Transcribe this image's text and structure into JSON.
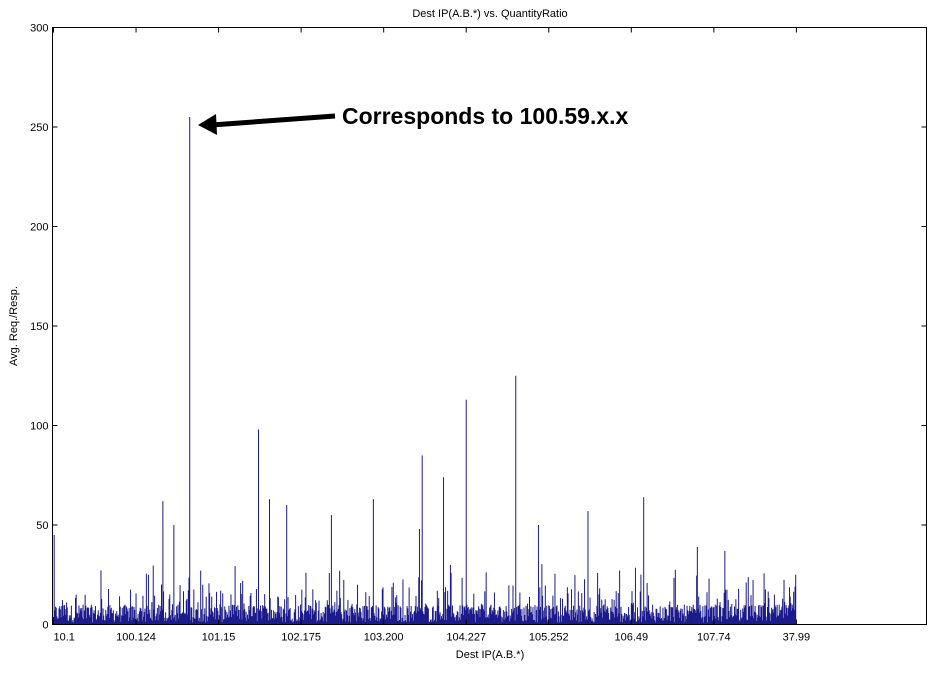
{
  "chart_data": {
    "type": "bar",
    "title": "Dest IP(A.B.*) vs. QuantityRatio",
    "xlabel": "Dest IP(A.B.*)",
    "ylabel": "Avg. Req./Resp.",
    "ylim": [
      0,
      300
    ],
    "yticks": [
      0,
      50,
      100,
      150,
      200,
      250,
      300
    ],
    "xtick_labels": [
      "10.1",
      "100.124",
      "101.15",
      "102.175",
      "103.200",
      "104.227",
      "105.252",
      "106.49",
      "107.74",
      "37.99"
    ],
    "bar_color": "#1a1a8c",
    "grid": false,
    "n_categories": 1080,
    "data_extent": 0.85,
    "highlight_values": [
      {
        "position": 0.001,
        "value": 45
      },
      {
        "position": 0.125,
        "value": 62
      },
      {
        "position": 0.138,
        "value": 50
      },
      {
        "position": 0.156,
        "value": 255
      },
      {
        "position": 0.235,
        "value": 98
      },
      {
        "position": 0.247,
        "value": 63
      },
      {
        "position": 0.267,
        "value": 60
      },
      {
        "position": 0.318,
        "value": 55
      },
      {
        "position": 0.366,
        "value": 63
      },
      {
        "position": 0.419,
        "value": 48
      },
      {
        "position": 0.422,
        "value": 85
      },
      {
        "position": 0.447,
        "value": 74
      },
      {
        "position": 0.473,
        "value": 113
      },
      {
        "position": 0.529,
        "value": 125
      },
      {
        "position": 0.555,
        "value": 50
      },
      {
        "position": 0.612,
        "value": 57
      },
      {
        "position": 0.676,
        "value": 64
      },
      {
        "position": 0.737,
        "value": 39
      },
      {
        "position": 0.769,
        "value": 37
      },
      {
        "position": 0.851,
        "value": 25
      }
    ]
  },
  "annotation": {
    "text": "Corresponds to 100.59.x.x",
    "target_label": "100.59.x.x",
    "target_value": 255
  }
}
